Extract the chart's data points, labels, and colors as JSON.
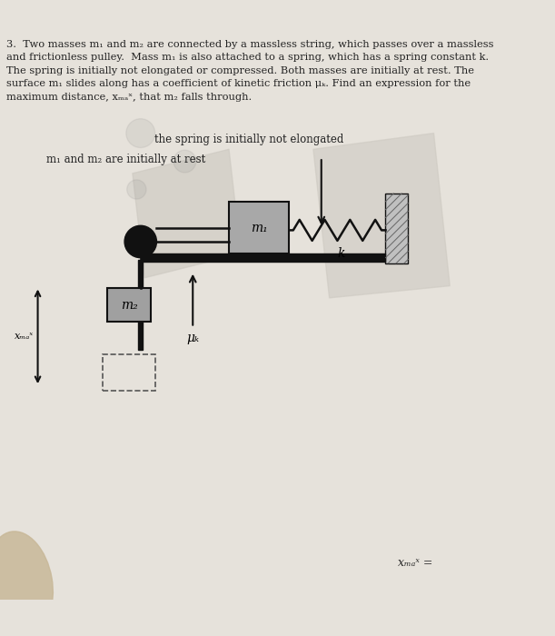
{
  "background_color": "#e6e2db",
  "text_color": "#222222",
  "title_line1": "3.  Two masses m",
  "title_line1b": "1",
  "title_text": "3.  Two masses m₁ and m₂ are connected by a massless string, which passes over a massless\nand frictionless pulley.  Mass m₁ is also attached to a spring, which has a spring constant k.\nThe spring is initially not elongated or compressed. Both masses are initially at rest. The\nsurface m₁ slides along has a coefficient of kinetic friction μₖ. Find an expression for the\nmaximum distance, xₘₐˣ, that m₂ falls through.",
  "annotation_spring_label": "the spring is initially not elongated",
  "annotation_rest_label": "m₁ and m₂ are initially at rest",
  "label_m1": "m₁",
  "label_m2": "m₂",
  "label_k": "k",
  "label_mu": "μₖ",
  "label_xmax": "xₘₐˣ",
  "label_xmax_eq": "xₘₐˣ =",
  "pulley_color": "#111111",
  "m1_box_color": "#a8a8a8",
  "m2_box_color": "#a0a0a0",
  "table_color": "#111111",
  "wall_color": "#bbbbbb",
  "wall_line_color": "#666666",
  "string_color": "#111111",
  "arrow_color": "#111111",
  "dashed_box_color": "#555555",
  "bg_paper_color": "#d0ccc4",
  "finger_color": "#c8b898"
}
